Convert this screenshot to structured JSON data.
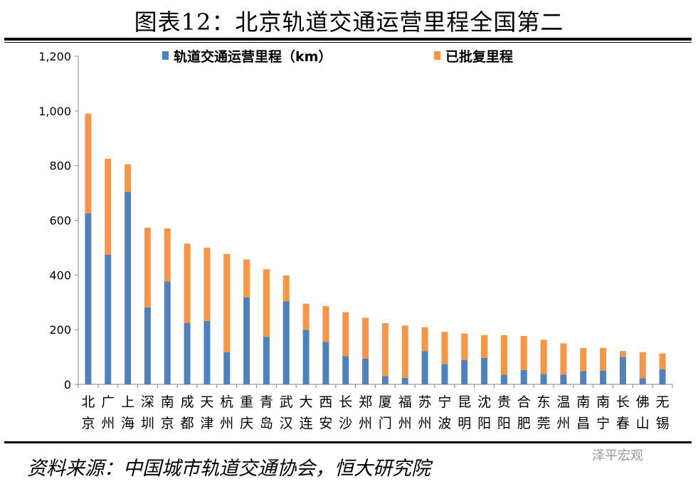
{
  "title": "图表12：北京轨道交通运营里程全国第二",
  "source": "资料来源：中国城市轨道交通协会，恒大研究院",
  "watermark": "泽平宏观",
  "colors": {
    "operational": "#4f81bd",
    "approved": "#f79646"
  },
  "chart_data": {
    "type": "bar",
    "stacked": true,
    "categories": [
      "北京",
      "广州",
      "上海",
      "深圳",
      "南京",
      "成都",
      "天津",
      "杭州",
      "重庆",
      "青岛",
      "武汉",
      "大连",
      "西安",
      "长沙",
      "郑州",
      "厦门",
      "福州",
      "苏州",
      "宁波",
      "昆明",
      "沈阳",
      "贵阳",
      "合肥",
      "东莞",
      "温州",
      "南昌",
      "南宁",
      "长春",
      "佛山",
      "无锡"
    ],
    "series": [
      {
        "name": "轨道交通运营里程（km）",
        "values": [
          625,
          474,
          703,
          282,
          376,
          224,
          232,
          118,
          318,
          174,
          304,
          199,
          155,
          103,
          94,
          30,
          24,
          121,
          74,
          89,
          97,
          35,
          52,
          38,
          36,
          48,
          50,
          100,
          22,
          55
        ]
      },
      {
        "name": "已批复里程",
        "values": [
          365,
          351,
          102,
          291,
          194,
          291,
          268,
          359,
          139,
          247,
          94,
          96,
          131,
          161,
          150,
          194,
          191,
          88,
          118,
          97,
          83,
          145,
          125,
          125,
          114,
          85,
          83,
          22,
          96,
          58
        ]
      }
    ],
    "ylim": [
      0,
      1200
    ],
    "yticks": [
      "0",
      "200",
      "400",
      "600",
      "800",
      "1,000",
      "1,200"
    ],
    "legend": "top",
    "grid": false
  }
}
